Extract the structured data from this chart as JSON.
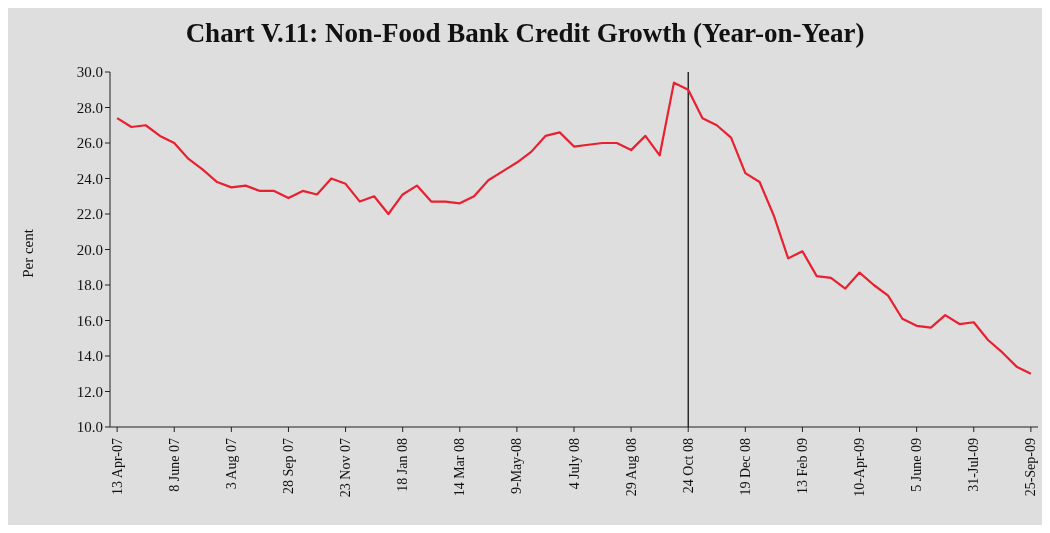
{
  "chart_data": {
    "type": "line",
    "title": "Chart V.11: Non-Food Bank Credit Growth (Year-on-Year)",
    "ylabel": "Per cent",
    "categories": [
      "13 Apr-07",
      null,
      null,
      null,
      "8 June 07",
      null,
      null,
      null,
      "3 Aug 07",
      null,
      null,
      null,
      "28 Sep 07",
      null,
      null,
      null,
      "23 Nov 07",
      null,
      null,
      null,
      "18 Jan 08",
      null,
      null,
      null,
      "14 Mar 08",
      null,
      null,
      null,
      "9-May-08",
      null,
      null,
      null,
      "4 July 08",
      null,
      null,
      null,
      "29 Aug 08",
      null,
      null,
      null,
      "24 Oct 08",
      null,
      null,
      null,
      "19 Dec 08",
      null,
      null,
      null,
      "13 Feb 09",
      null,
      null,
      null,
      "10-Apr-09",
      null,
      null,
      null,
      "5 June 09",
      null,
      null,
      null,
      "31-Jul-09",
      null,
      null,
      null,
      "25-Sep-09"
    ],
    "series": [
      {
        "color": "#e8202f",
        "values": [
          27.4,
          26.9,
          27.0,
          26.4,
          26.0,
          25.1,
          24.5,
          23.8,
          23.5,
          23.6,
          23.3,
          23.3,
          22.9,
          23.3,
          23.1,
          24.0,
          23.7,
          22.7,
          23.0,
          22.0,
          23.1,
          23.6,
          22.7,
          22.7,
          22.6,
          23.0,
          23.9,
          24.4,
          24.9,
          25.5,
          26.4,
          26.6,
          25.8,
          25.9,
          26.0,
          26.0,
          25.6,
          26.4,
          25.3,
          29.4,
          29.0,
          27.4,
          27.0,
          26.3,
          24.3,
          23.8,
          21.9,
          19.5,
          19.9,
          18.5,
          18.4,
          17.8,
          18.7,
          18.0,
          17.4,
          16.1,
          15.7,
          15.6,
          16.3,
          15.8,
          15.9,
          14.9,
          14.2,
          13.4,
          13.0
        ]
      }
    ],
    "ylim": [
      10,
      30
    ],
    "yticks": [
      {
        "value": 10,
        "label": "10.0"
      },
      {
        "value": 12,
        "label": "12.0"
      },
      {
        "value": 14,
        "label": "14.0"
      },
      {
        "value": 16,
        "label": "16.0"
      },
      {
        "value": 18,
        "label": "18.0"
      },
      {
        "value": 20,
        "label": "20.0"
      },
      {
        "value": 22,
        "label": "22.0"
      },
      {
        "value": 24,
        "label": "24.0"
      },
      {
        "value": 26,
        "label": "26.0"
      },
      {
        "value": 28,
        "label": "28.0"
      },
      {
        "value": 30,
        "label": "30.0"
      }
    ],
    "ref_lines": [
      {
        "axis": "x",
        "value": "24 Oct 08",
        "color": "#000000"
      }
    ],
    "grid": false,
    "legend": false,
    "marker": "none",
    "line_style": "solid"
  }
}
